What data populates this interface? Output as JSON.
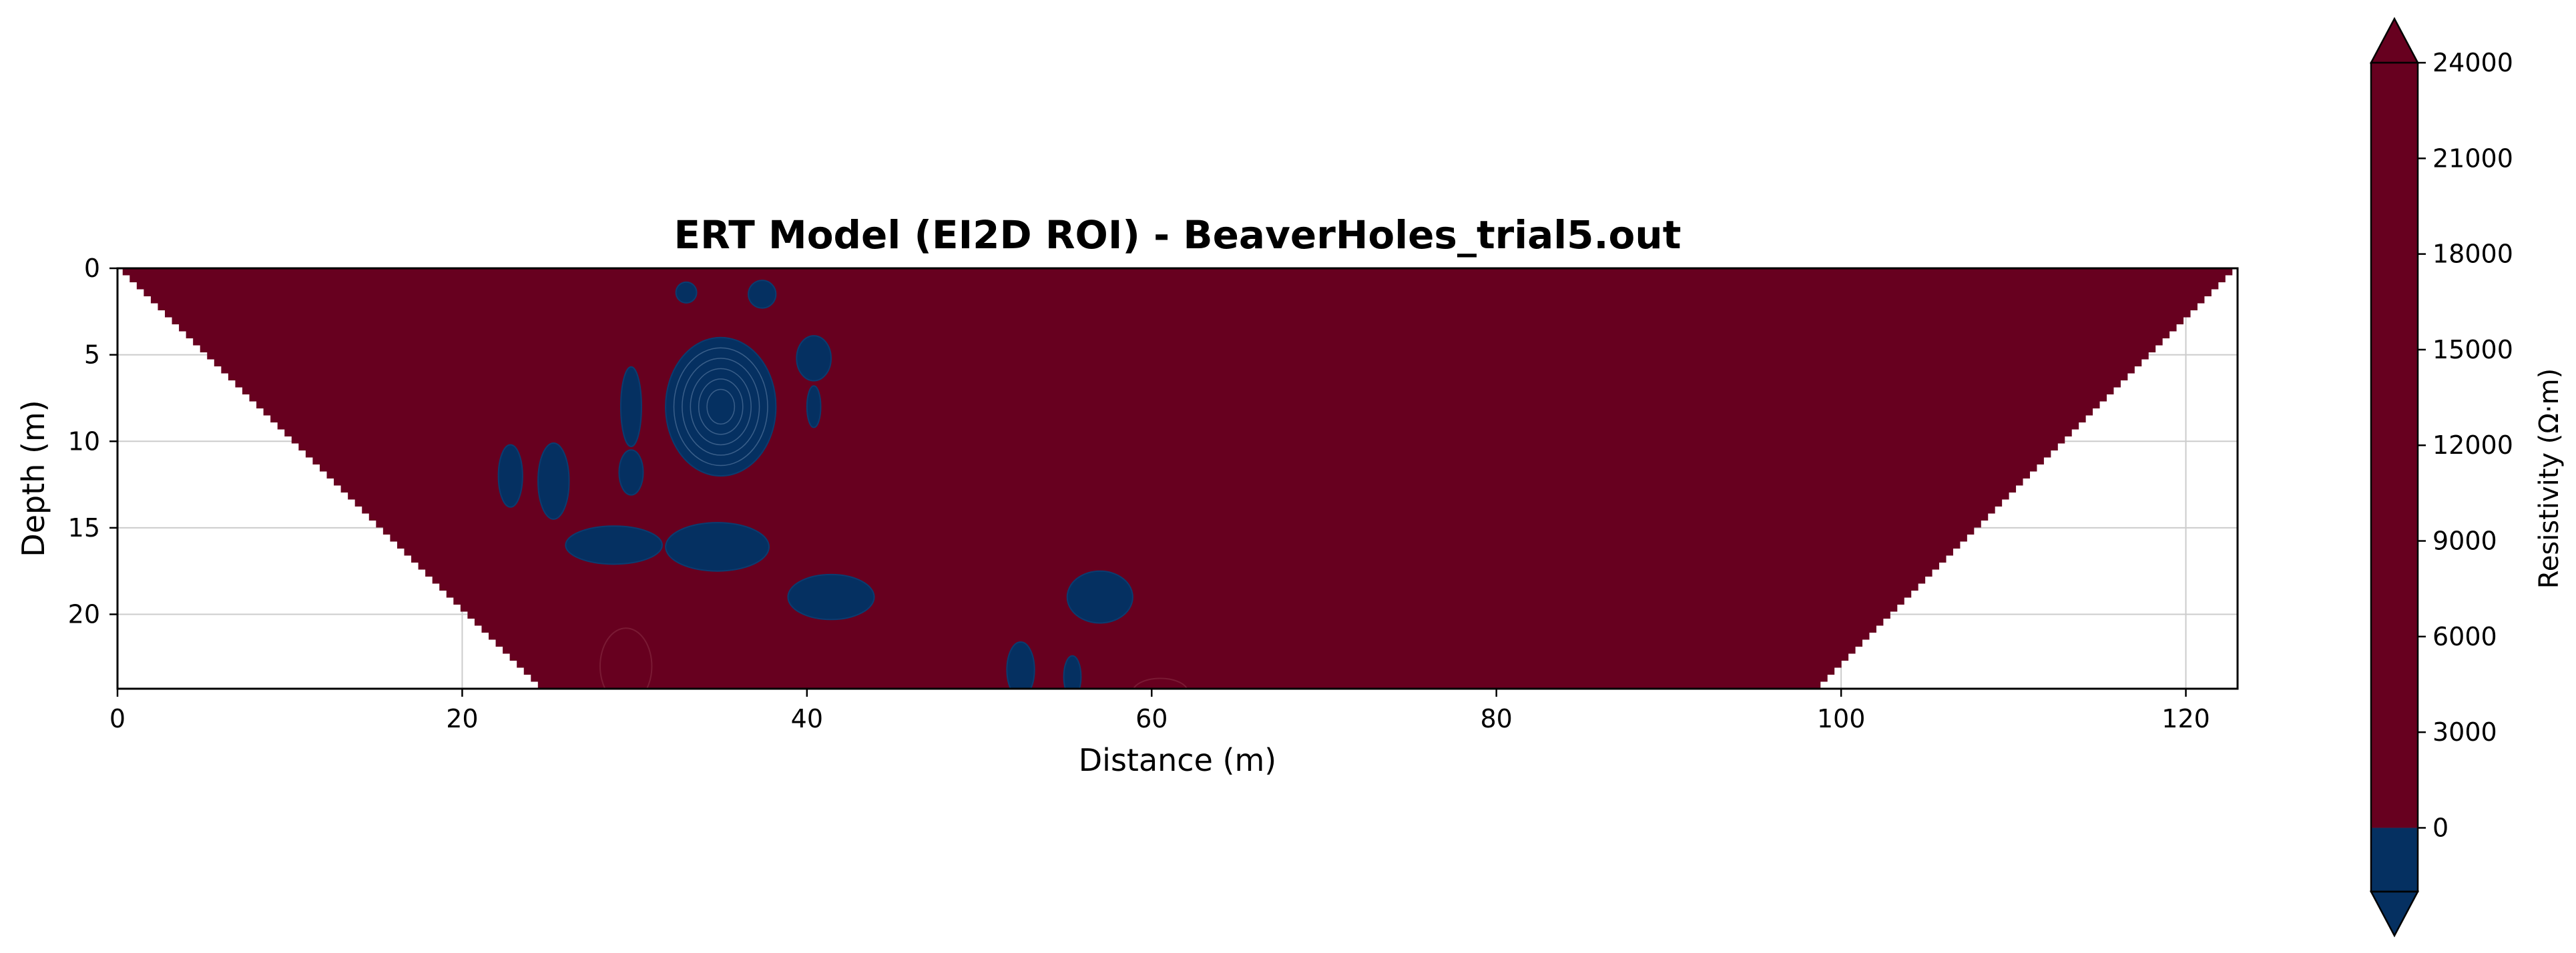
{
  "chart_data": {
    "type": "heatmap",
    "title": "ERT Model (EI2D ROI) - BeaverHoles_trial5.out",
    "xlabel": "Distance (m)",
    "ylabel": "Depth (m)",
    "xlim": [
      0,
      123
    ],
    "ylim": [
      24.3,
      0
    ],
    "y_inverted": true,
    "grid": true,
    "xticks": [
      0,
      20,
      40,
      60,
      80,
      100,
      120
    ],
    "yticks": [
      0,
      5,
      10,
      15,
      20
    ],
    "roi_trapezoid": {
      "top": [
        0.3,
        122.7
      ],
      "bottom_depth": 24.3,
      "bottom": [
        24.8,
        98.4
      ]
    },
    "colors": {
      "high_resistivity": "#67001f",
      "low_resistivity": "#053061",
      "axis": "#000000",
      "grid": "#cccccc"
    },
    "low_resistivity_zones": [
      {
        "x": 33.0,
        "depth": 1.4,
        "rx": 0.6,
        "ry": 0.6
      },
      {
        "x": 37.4,
        "depth": 1.5,
        "rx": 0.8,
        "ry": 0.8
      },
      {
        "x": 35.0,
        "depth": 8.0,
        "rx": 3.2,
        "ry": 4.0
      },
      {
        "x": 29.8,
        "depth": 8.0,
        "rx": 0.6,
        "ry": 2.3
      },
      {
        "x": 40.4,
        "depth": 5.2,
        "rx": 1.0,
        "ry": 1.3
      },
      {
        "x": 40.4,
        "depth": 8.0,
        "rx": 0.4,
        "ry": 1.2
      },
      {
        "x": 22.8,
        "depth": 12.0,
        "rx": 0.7,
        "ry": 1.8
      },
      {
        "x": 25.3,
        "depth": 12.3,
        "rx": 0.9,
        "ry": 2.2
      },
      {
        "x": 29.8,
        "depth": 11.8,
        "rx": 0.7,
        "ry": 1.3
      },
      {
        "x": 28.8,
        "depth": 16.0,
        "rx": 2.8,
        "ry": 1.1
      },
      {
        "x": 34.8,
        "depth": 16.1,
        "rx": 3.0,
        "ry": 1.4
      },
      {
        "x": 41.4,
        "depth": 19.0,
        "rx": 2.5,
        "ry": 1.3
      },
      {
        "x": 57.0,
        "depth": 19.0,
        "rx": 1.9,
        "ry": 1.5
      },
      {
        "x": 52.4,
        "depth": 23.2,
        "rx": 0.8,
        "ry": 1.6
      },
      {
        "x": 55.4,
        "depth": 23.6,
        "rx": 0.5,
        "ry": 1.2
      }
    ],
    "colorbar": {
      "label": "Resistivity (Ω·m)",
      "ticks": [
        0,
        3000,
        6000,
        9000,
        12000,
        15000,
        18000,
        21000,
        24000
      ],
      "tick_labels": [
        "0",
        "3000",
        "6000",
        "9000",
        "12000",
        "15000",
        "18000",
        "21000",
        "24000"
      ],
      "range": [
        0,
        24000
      ],
      "below_min_band": [
        -2000,
        0
      ],
      "extend": "both"
    }
  }
}
